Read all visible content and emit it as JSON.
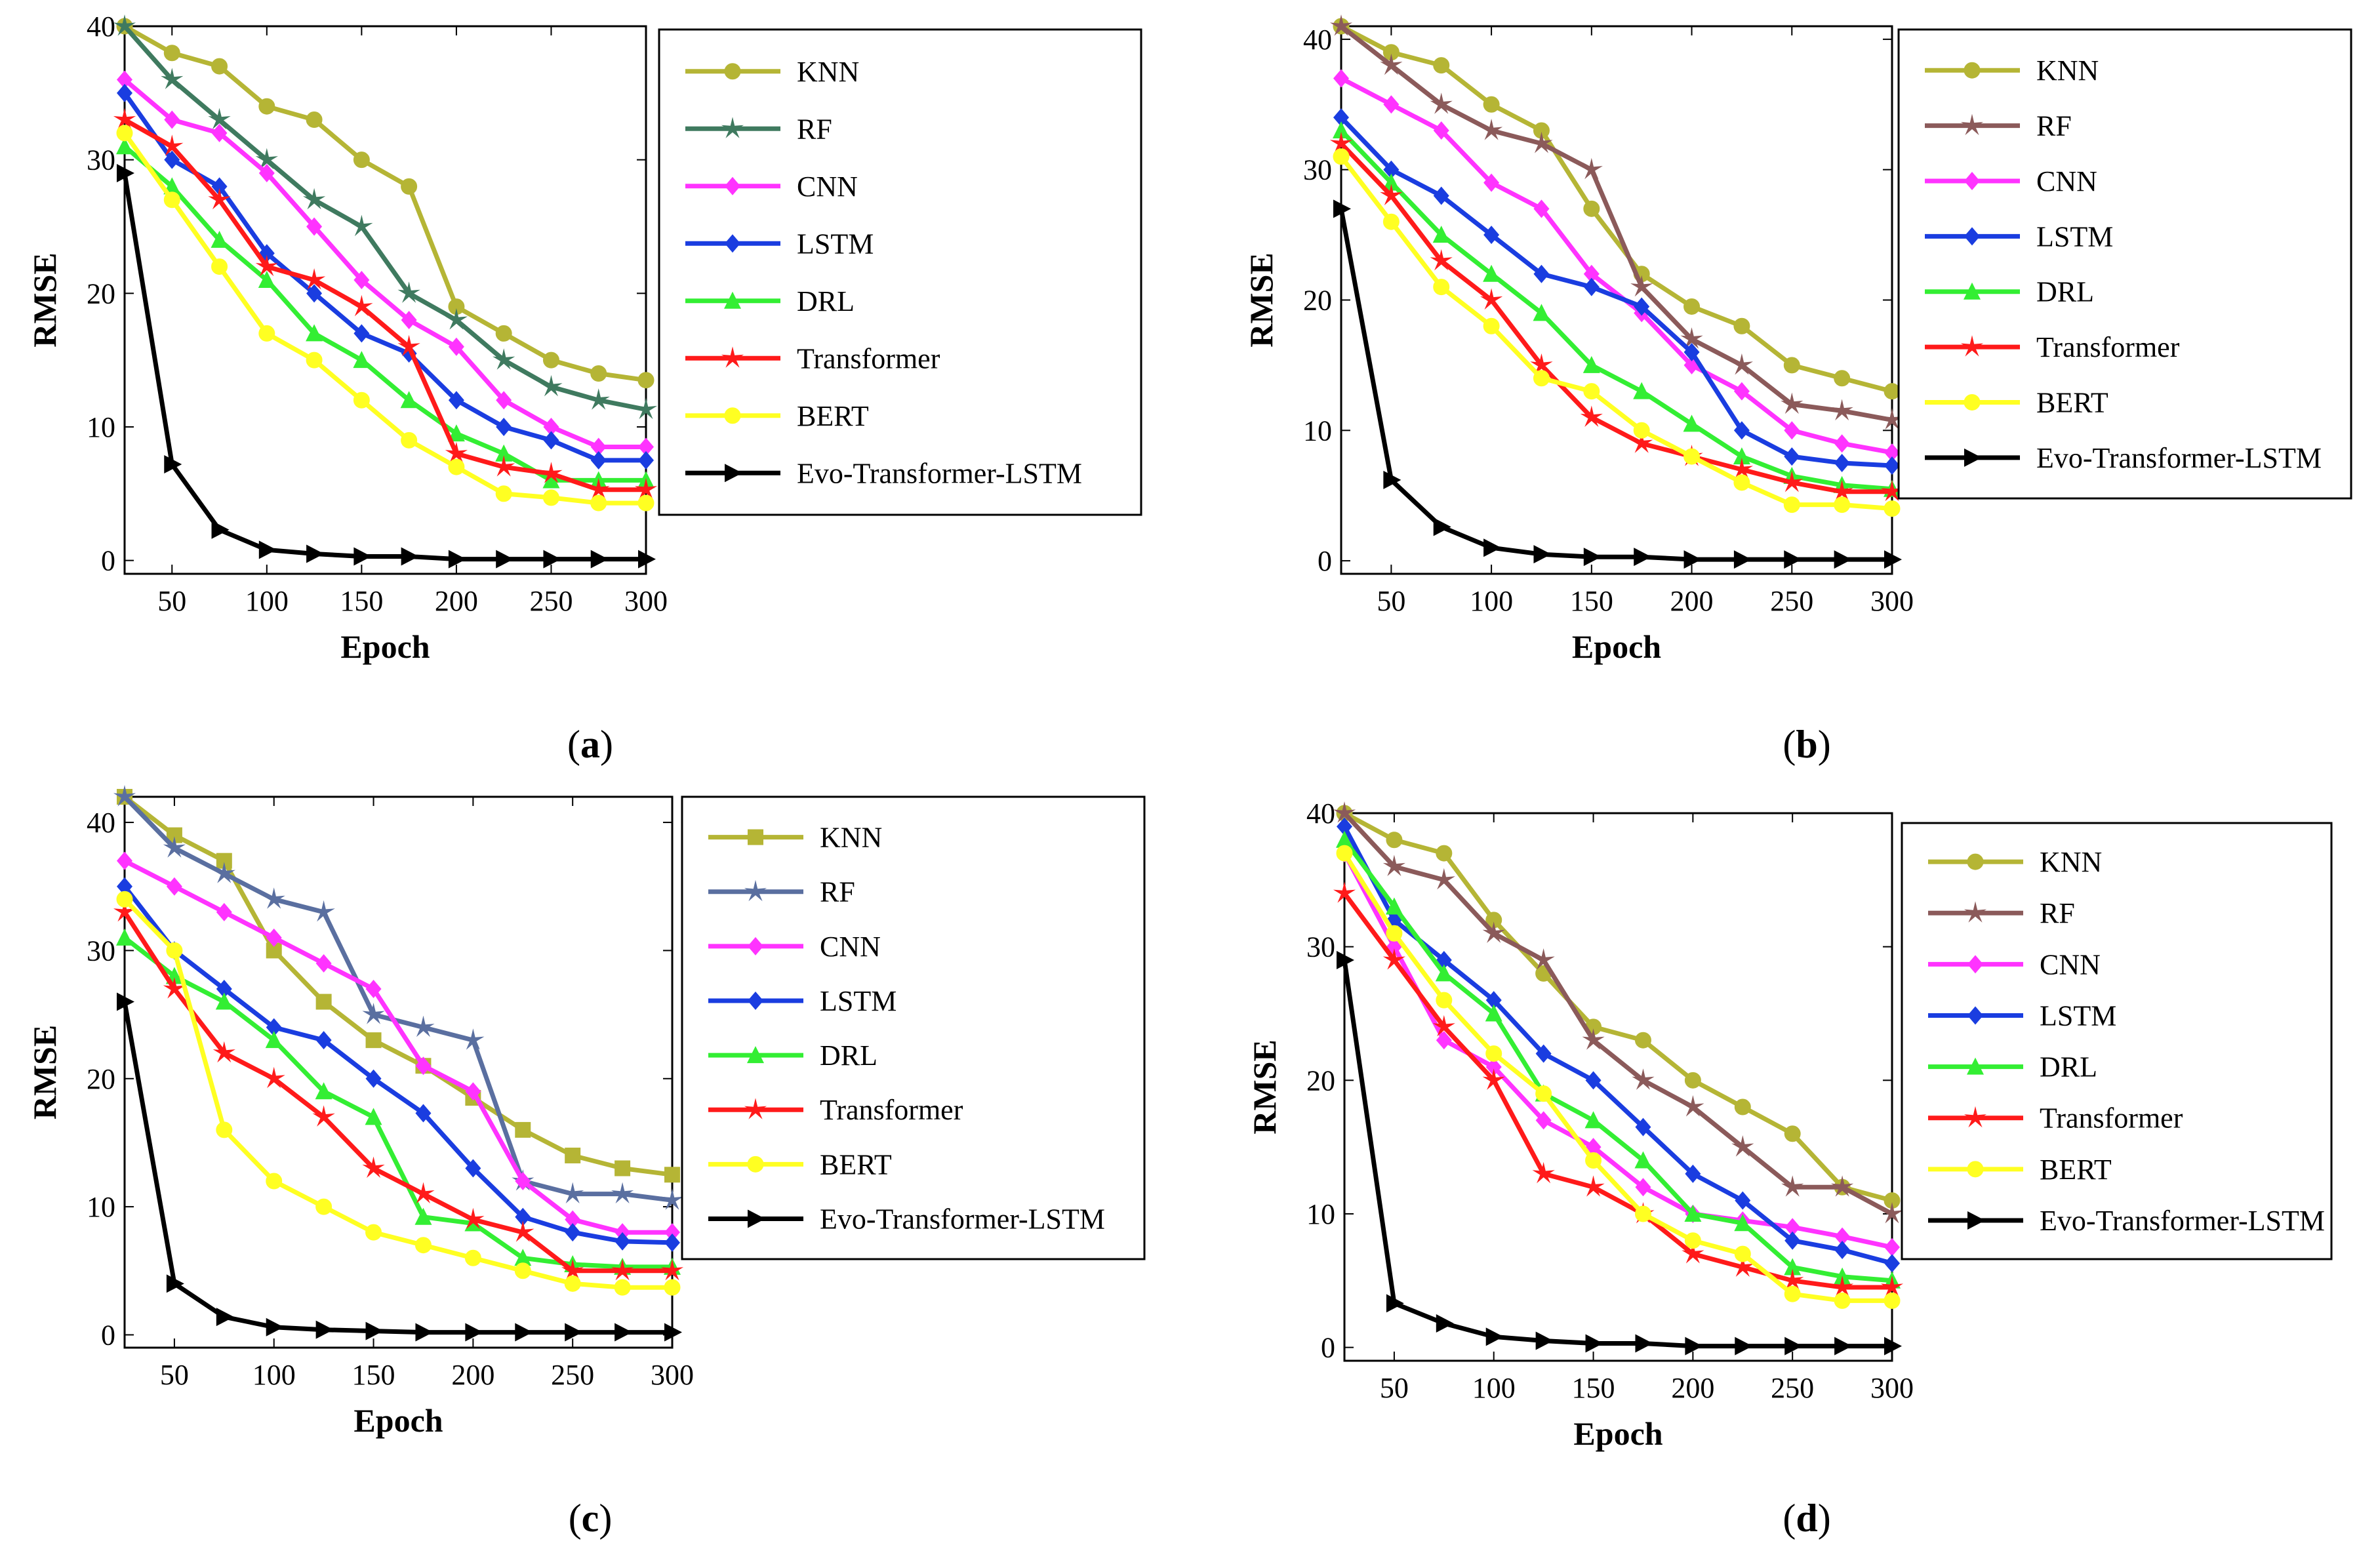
{
  "figure": {
    "panel_labels": [
      "(a)",
      "(b)",
      "(c)",
      "(d)"
    ]
  },
  "chart_data": [
    {
      "type": "line",
      "panel_letter": "a",
      "title": "",
      "xlabel": "Epoch",
      "ylabel": "RMSE",
      "xlim": [
        25,
        300
      ],
      "ylim": [
        -1,
        40
      ],
      "xticks": [
        50,
        100,
        150,
        200,
        250,
        300
      ],
      "yticks": [
        0,
        10,
        20,
        30,
        40
      ],
      "x": [
        25,
        50,
        75,
        100,
        125,
        150,
        175,
        200,
        225,
        250,
        275,
        300
      ],
      "legend_position": "right",
      "series": [
        {
          "name": "KNN",
          "color": "#b5b535",
          "marker": "circle",
          "values": [
            40,
            38,
            37,
            34,
            33,
            30,
            28,
            19,
            17,
            15,
            14,
            13.5
          ]
        },
        {
          "name": "RF",
          "color": "#3f7a5f",
          "marker": "star",
          "values": [
            40,
            36,
            33,
            30,
            27,
            25,
            20,
            18,
            15,
            13,
            12,
            11.3
          ]
        },
        {
          "name": "CNN",
          "color": "#ff33ff",
          "marker": "diamond",
          "values": [
            36,
            33,
            32,
            29,
            25,
            21,
            18,
            16,
            12,
            10,
            8.5,
            8.5
          ]
        },
        {
          "name": "LSTM",
          "color": "#1a3de0",
          "marker": "diamond",
          "values": [
            35,
            30,
            28,
            23,
            20,
            17,
            15.5,
            12,
            10,
            9,
            7.5,
            7.5
          ]
        },
        {
          "name": "DRL",
          "color": "#33ee33",
          "marker": "triangle",
          "values": [
            31,
            28,
            24,
            21,
            17,
            15,
            12,
            9.5,
            8,
            6,
            6,
            6
          ]
        },
        {
          "name": "Transformer",
          "color": "#ff1a1a",
          "marker": "star",
          "values": [
            33,
            31,
            27,
            22,
            21,
            19,
            16,
            8,
            7,
            6.5,
            5.3,
            5.3
          ]
        },
        {
          "name": "BERT",
          "color": "#ffff22",
          "marker": "circle",
          "values": [
            32,
            27,
            22,
            17,
            15,
            12,
            9,
            7,
            5,
            4.7,
            4.3,
            4.3
          ]
        },
        {
          "name": "Evo-Transformer-LSTM",
          "color": "#000000",
          "marker": "triangle-right",
          "values": [
            29,
            7.2,
            2.3,
            0.8,
            0.5,
            0.3,
            0.3,
            0.1,
            0.1,
            0.1,
            0.1,
            0.1
          ]
        }
      ]
    },
    {
      "type": "line",
      "panel_letter": "b",
      "title": "",
      "xlabel": "Epoch",
      "ylabel": "RMSE",
      "xlim": [
        25,
        300
      ],
      "ylim": [
        -1,
        41
      ],
      "xticks": [
        50,
        100,
        150,
        200,
        250,
        300
      ],
      "yticks": [
        0,
        10,
        20,
        30,
        40
      ],
      "x": [
        25,
        50,
        75,
        100,
        125,
        150,
        175,
        200,
        225,
        250,
        275,
        300
      ],
      "legend_position": "right",
      "series": [
        {
          "name": "KNN",
          "color": "#b5b535",
          "marker": "circle",
          "values": [
            41,
            39,
            38,
            35,
            33,
            27,
            22,
            19.5,
            18,
            15,
            14,
            13
          ]
        },
        {
          "name": "RF",
          "color": "#8b5a5a",
          "marker": "star",
          "values": [
            41,
            38,
            35,
            33,
            32,
            30,
            21,
            17,
            15,
            12,
            11.5,
            10.8
          ]
        },
        {
          "name": "CNN",
          "color": "#ff33ff",
          "marker": "diamond",
          "values": [
            37,
            35,
            33,
            29,
            27,
            22,
            19,
            15,
            13,
            10,
            9,
            8.3
          ]
        },
        {
          "name": "LSTM",
          "color": "#1a3de0",
          "marker": "diamond",
          "values": [
            34,
            30,
            28,
            25,
            22,
            21,
            19.5,
            16,
            10,
            8,
            7.5,
            7.3
          ]
        },
        {
          "name": "DRL",
          "color": "#33ee33",
          "marker": "triangle",
          "values": [
            33,
            29,
            25,
            22,
            19,
            15,
            13,
            10.5,
            8,
            6.5,
            5.8,
            5.5
          ]
        },
        {
          "name": "Transformer",
          "color": "#ff1a1a",
          "marker": "star",
          "values": [
            32,
            28,
            23,
            20,
            15,
            11,
            9,
            8,
            7,
            6,
            5.3,
            5.3
          ]
        },
        {
          "name": "BERT",
          "color": "#ffff22",
          "marker": "circle",
          "values": [
            31,
            26,
            21,
            18,
            14,
            13,
            10,
            8,
            6,
            4.3,
            4.3,
            4
          ]
        },
        {
          "name": "Evo-Transformer-LSTM",
          "color": "#000000",
          "marker": "triangle-right",
          "values": [
            27,
            6.2,
            2.6,
            1,
            0.5,
            0.3,
            0.3,
            0.1,
            0.1,
            0.1,
            0.1,
            0.1
          ]
        }
      ]
    },
    {
      "type": "line",
      "panel_letter": "c",
      "title": "",
      "xlabel": "Epoch",
      "ylabel": "RMSE",
      "xlim": [
        25,
        300
      ],
      "ylim": [
        -1,
        42
      ],
      "xticks": [
        50,
        100,
        150,
        200,
        250,
        300
      ],
      "yticks": [
        0,
        10,
        20,
        30,
        40
      ],
      "x": [
        25,
        50,
        75,
        100,
        125,
        150,
        175,
        200,
        225,
        250,
        275,
        300
      ],
      "legend_position": "right",
      "series": [
        {
          "name": "KNN",
          "color": "#b5b535",
          "marker": "square",
          "values": [
            42,
            39,
            37,
            30,
            26,
            23,
            21,
            18.5,
            16,
            14,
            13,
            12.5
          ]
        },
        {
          "name": "RF",
          "color": "#5a6fa0",
          "marker": "star",
          "values": [
            42,
            38,
            36,
            34,
            33,
            25,
            24,
            23,
            12,
            11,
            11,
            10.5
          ]
        },
        {
          "name": "CNN",
          "color": "#ff33ff",
          "marker": "diamond",
          "values": [
            37,
            35,
            33,
            31,
            29,
            27,
            21,
            19,
            12,
            9,
            8,
            8
          ]
        },
        {
          "name": "LSTM",
          "color": "#1a3de0",
          "marker": "diamond",
          "values": [
            35,
            30,
            27,
            24,
            23,
            20,
            17.3,
            13,
            9.2,
            8,
            7.3,
            7.2
          ]
        },
        {
          "name": "DRL",
          "color": "#33ee33",
          "marker": "triangle",
          "values": [
            31,
            28,
            26,
            23,
            19,
            17,
            9.2,
            8.7,
            6,
            5.5,
            5.3,
            5.3
          ]
        },
        {
          "name": "Transformer",
          "color": "#ff1a1a",
          "marker": "star",
          "values": [
            33,
            27,
            22,
            20,
            17,
            13,
            11,
            9,
            8,
            5,
            5,
            5
          ]
        },
        {
          "name": "BERT",
          "color": "#ffff22",
          "marker": "circle",
          "values": [
            34,
            30,
            16,
            12,
            10,
            8,
            7,
            6,
            5,
            4,
            3.7,
            3.7
          ]
        },
        {
          "name": "Evo-Transformer-LSTM",
          "color": "#000000",
          "marker": "triangle-right",
          "values": [
            26,
            4,
            1.4,
            0.6,
            0.4,
            0.3,
            0.2,
            0.2,
            0.2,
            0.2,
            0.2,
            0.2
          ]
        }
      ]
    },
    {
      "type": "line",
      "panel_letter": "d",
      "title": "",
      "xlabel": "Epoch",
      "ylabel": "RMSE",
      "xlim": [
        25,
        300
      ],
      "ylim": [
        -1,
        40
      ],
      "xticks": [
        50,
        100,
        150,
        200,
        250,
        300
      ],
      "yticks": [
        0,
        10,
        20,
        30,
        40
      ],
      "x": [
        25,
        50,
        75,
        100,
        125,
        150,
        175,
        200,
        225,
        250,
        275,
        300
      ],
      "legend_position": "right",
      "series": [
        {
          "name": "KNN",
          "color": "#b5b535",
          "marker": "circle",
          "values": [
            40,
            38,
            37,
            32,
            28,
            24,
            23,
            20,
            18,
            16,
            12,
            11
          ]
        },
        {
          "name": "RF",
          "color": "#8b5a5a",
          "marker": "star",
          "values": [
            40,
            36,
            35,
            31,
            29,
            23,
            20,
            18,
            15,
            12,
            12,
            10
          ]
        },
        {
          "name": "CNN",
          "color": "#ff33ff",
          "marker": "diamond",
          "values": [
            37,
            30,
            23,
            21,
            17,
            15,
            12,
            10,
            9.5,
            9,
            8.3,
            7.5
          ]
        },
        {
          "name": "LSTM",
          "color": "#1a3de0",
          "marker": "diamond",
          "values": [
            39,
            32,
            29,
            26,
            22,
            20,
            16.5,
            13,
            11,
            8,
            7.3,
            6.3
          ]
        },
        {
          "name": "DRL",
          "color": "#33ee33",
          "marker": "triangle",
          "values": [
            38,
            33,
            28,
            25,
            19,
            17,
            14,
            10,
            9.3,
            6,
            5.3,
            5
          ]
        },
        {
          "name": "Transformer",
          "color": "#ff1a1a",
          "marker": "star",
          "values": [
            34,
            29,
            24,
            20,
            13,
            12,
            10,
            7,
            6,
            5,
            4.5,
            4.5
          ]
        },
        {
          "name": "BERT",
          "color": "#ffff22",
          "marker": "circle",
          "values": [
            37,
            31,
            26,
            22,
            19,
            14,
            10,
            8,
            7,
            4,
            3.5,
            3.5
          ]
        },
        {
          "name": "Evo-Transformer-LSTM",
          "color": "#000000",
          "marker": "triangle-right",
          "values": [
            29,
            3.3,
            1.8,
            0.8,
            0.5,
            0.3,
            0.3,
            0.1,
            0.1,
            0.1,
            0.1,
            0.1
          ]
        }
      ]
    }
  ]
}
